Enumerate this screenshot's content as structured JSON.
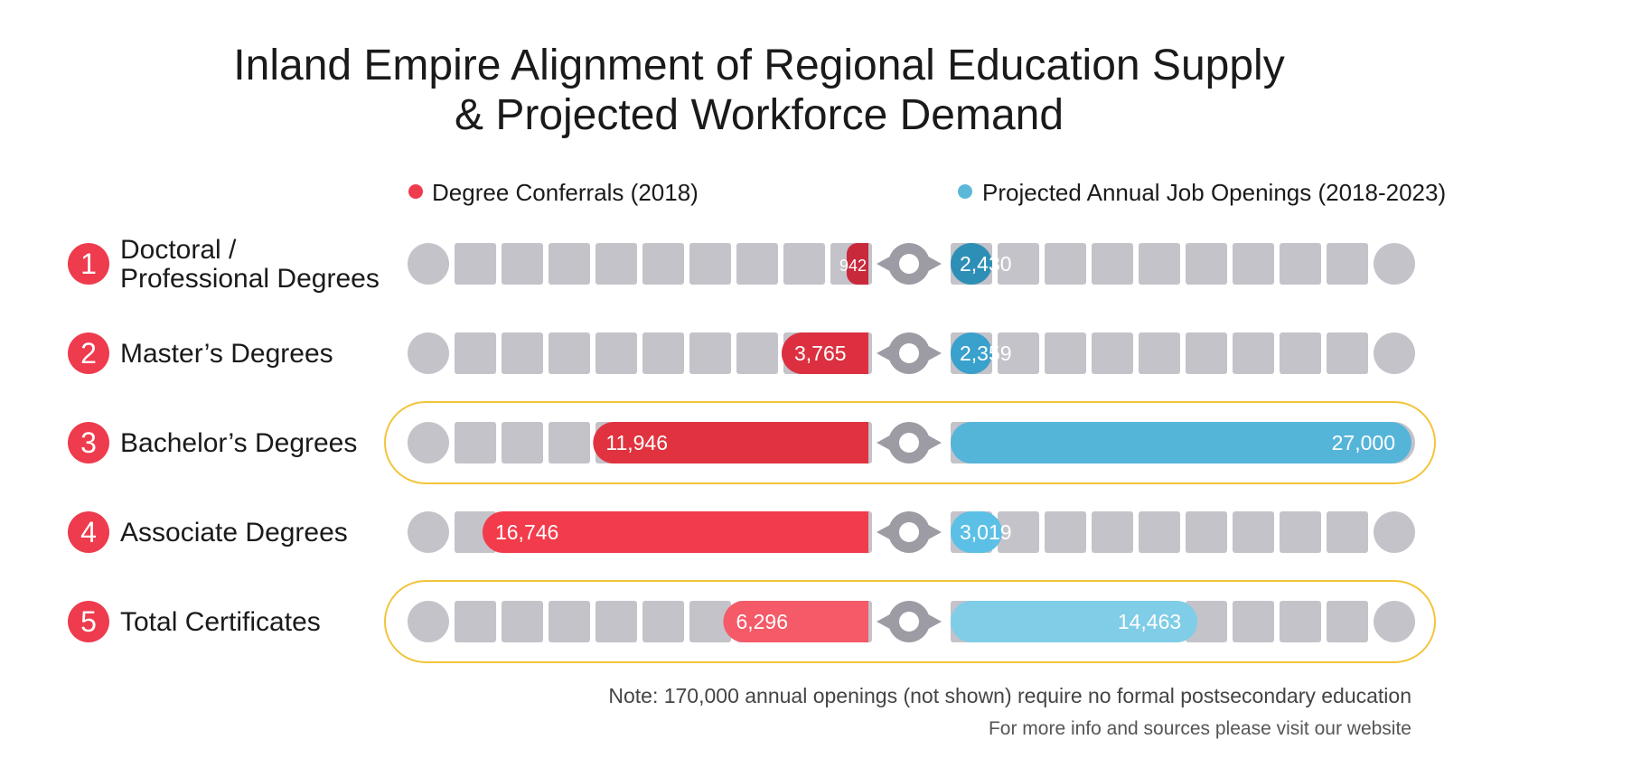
{
  "chart_data": {
    "type": "bar",
    "title_lines": [
      "Inland Empire Alignment of Regional Education Supply",
      "& Projected Workforce Demand"
    ],
    "legend": [
      {
        "label": "Degree Conferrals (2018)",
        "color": "#ee3b4d"
      },
      {
        "label": "Projected Annual Job Openings (2018-2023)",
        "color": "#5bb8d8"
      }
    ],
    "categories": [
      {
        "rank": "1",
        "label_lines": [
          "Doctoral /",
          "Professional Degrees"
        ],
        "highlight": false
      },
      {
        "rank": "2",
        "label_lines": [
          "Master’s Degrees"
        ],
        "highlight": false
      },
      {
        "rank": "3",
        "label_lines": [
          "Bachelor’s Degrees"
        ],
        "highlight": true
      },
      {
        "rank": "4",
        "label_lines": [
          "Associate Degrees"
        ],
        "highlight": false
      },
      {
        "rank": "5",
        "label_lines": [
          "Total Certificates"
        ],
        "highlight": true
      }
    ],
    "series": [
      {
        "name": "Degree Conferrals (2018)",
        "values": [
          942,
          3765,
          11946,
          16746,
          6296
        ],
        "labels": [
          "942",
          "3,765",
          "11,946",
          "16,746",
          "6,296"
        ],
        "colors": [
          "#c82a3c",
          "#dc3040",
          "#e0333f",
          "#f23c4c",
          "#f45a68"
        ]
      },
      {
        "name": "Projected Annual Job Openings (2018-2023)",
        "values": [
          2430,
          2359,
          27000,
          3019,
          14463
        ],
        "labels": [
          "2,430",
          "2,359",
          "27,000",
          "3,019",
          "14,463"
        ],
        "colors": [
          "#2e8fb6",
          "#3aa0cc",
          "#55b5d9",
          "#5cc0e6",
          "#80cde7"
        ]
      }
    ],
    "note": "Note: 170,000 annual openings (not shown) require no formal postsecondary education",
    "source": "For more info and sources please visit our website"
  },
  "colors": {
    "track_segment": "#c4c3c9",
    "connector": "#9d9ca4",
    "highlight_border": "#f2c43a",
    "rank_circle": "#ee3b4d"
  }
}
